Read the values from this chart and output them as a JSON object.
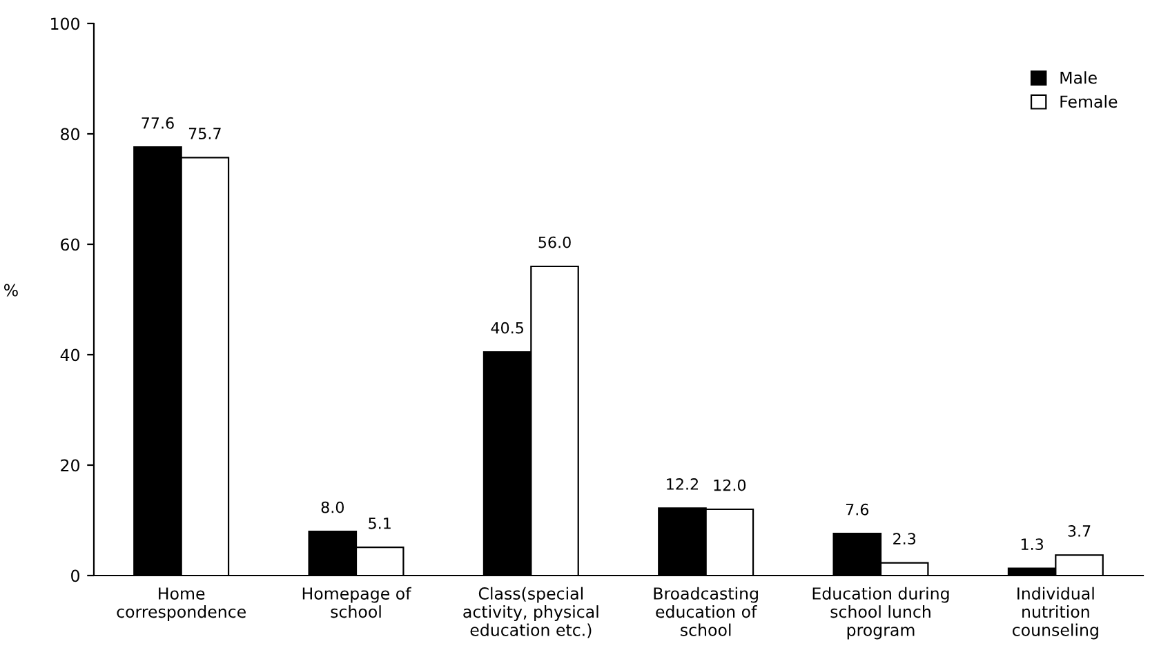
{
  "chart_data": {
    "type": "bar",
    "ylabel": "%",
    "categories": [
      "Home\ncorrespondence",
      "Homepage of\nschool",
      "Class(special\nactivity, physical\neducation etc.)",
      "Broadcasting\neducation of\nschool",
      "Education during\nschool lunch\nprogram",
      "Individual\nnutrition\ncounseling"
    ],
    "series": [
      {
        "name": "Male",
        "color": "#000000",
        "values": [
          77.6,
          8.0,
          40.5,
          12.2,
          7.6,
          1.3
        ]
      },
      {
        "name": "Female",
        "color": "#ffffff",
        "values": [
          75.7,
          5.1,
          56.0,
          12.0,
          2.3,
          3.7
        ]
      }
    ],
    "value_labels": [
      [
        "77.6",
        "8.0",
        "40.5",
        "12.2",
        "7.6",
        "1.3"
      ],
      [
        "75.7",
        "5.1",
        "56.0",
        "12.0",
        "2.3",
        "3.7"
      ]
    ],
    "ylim": [
      0,
      100
    ],
    "yticks": [
      0,
      20,
      40,
      60,
      80,
      100
    ],
    "grid": false,
    "legend": "top right"
  }
}
